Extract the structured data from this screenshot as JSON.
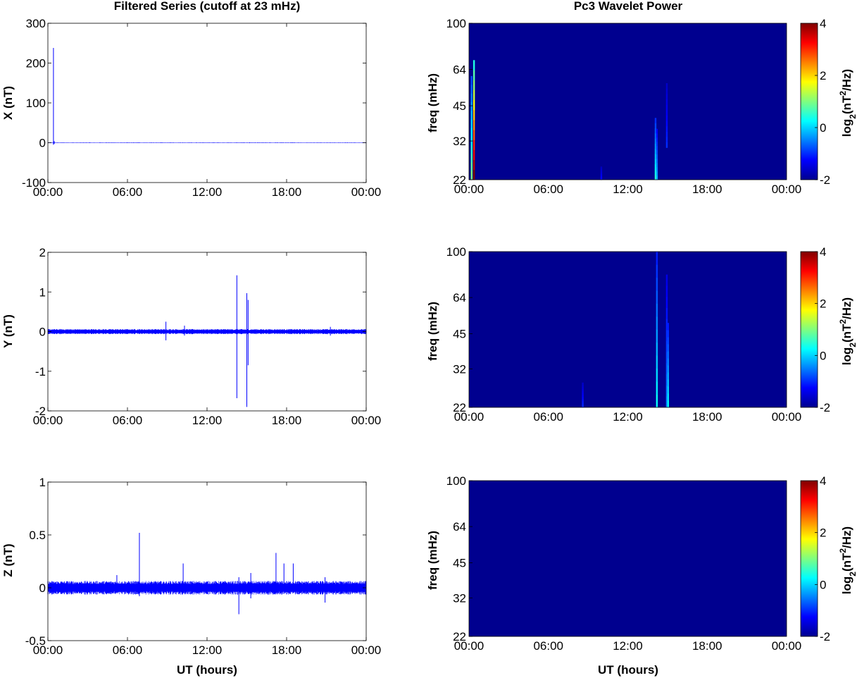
{
  "chart_data": [
    {
      "type": "line",
      "title": "Filtered Series (cutoff at 23 mHz)",
      "ylabel": "X (nT)",
      "xlabel": "",
      "x_ticks": [
        "00:00",
        "06:00",
        "12:00",
        "18:00",
        "00:00"
      ],
      "xlim_hours": [
        0,
        24
      ],
      "ylim": [
        -100,
        300
      ],
      "y_ticks": [
        -100,
        0,
        100,
        200,
        300
      ],
      "color": "#0000ff",
      "noise_amplitude": 0.5,
      "spikes": [
        {
          "t": 0.42,
          "min": -5,
          "max": 238
        },
        {
          "t": 0.48,
          "min": -3,
          "max": 4
        },
        {
          "t": 15.2,
          "min": -1,
          "max": 1
        }
      ]
    },
    {
      "type": "line",
      "title": "",
      "ylabel": "Y (nT)",
      "xlabel": "",
      "x_ticks": [
        "00:00",
        "06:00",
        "12:00",
        "18:00",
        "00:00"
      ],
      "xlim_hours": [
        0,
        24
      ],
      "ylim": [
        -2,
        2
      ],
      "y_ticks": [
        -2,
        -1,
        0,
        1,
        2
      ],
      "color": "#0000ff",
      "noise_amplitude": 0.05,
      "spikes": [
        {
          "t": 8.9,
          "min": -0.22,
          "max": 0.25
        },
        {
          "t": 10.3,
          "min": -0.1,
          "max": 0.15
        },
        {
          "t": 14.25,
          "min": -1.68,
          "max": 1.42
        },
        {
          "t": 15.0,
          "min": -1.9,
          "max": 0.97
        },
        {
          "t": 15.1,
          "min": -0.85,
          "max": 0.8
        },
        {
          "t": 21.3,
          "min": -0.1,
          "max": 0.12
        }
      ]
    },
    {
      "type": "line",
      "title": "",
      "ylabel": "Z (nT)",
      "xlabel": "UT (hours)",
      "x_ticks": [
        "00:00",
        "06:00",
        "12:00",
        "18:00",
        "00:00"
      ],
      "xlim_hours": [
        0,
        24
      ],
      "ylim": [
        -0.5,
        1
      ],
      "y_ticks": [
        -0.5,
        0,
        0.5,
        1
      ],
      "color": "#0000ff",
      "noise_amplitude": 0.05,
      "spikes": [
        {
          "t": 5.2,
          "min": -0.05,
          "max": 0.12
        },
        {
          "t": 6.9,
          "min": -0.08,
          "max": 0.52
        },
        {
          "t": 10.2,
          "min": -0.05,
          "max": 0.23
        },
        {
          "t": 14.4,
          "min": -0.25,
          "max": 0.1
        },
        {
          "t": 15.3,
          "min": -0.1,
          "max": 0.14
        },
        {
          "t": 17.2,
          "min": -0.05,
          "max": 0.33
        },
        {
          "t": 17.8,
          "min": -0.05,
          "max": 0.23
        },
        {
          "t": 18.5,
          "min": -0.05,
          "max": 0.23
        },
        {
          "t": 20.9,
          "min": -0.14,
          "max": 0.1
        }
      ]
    },
    {
      "type": "heatmap",
      "title": "Pc3 Wavelet Power",
      "ylabel": "freq (mHz)",
      "xlabel": "",
      "x_ticks": [
        "00:00",
        "06:00",
        "12:00",
        "18:00",
        "00:00"
      ],
      "xlim_hours": [
        0,
        24
      ],
      "y_ticks": [
        22,
        32,
        45,
        64,
        100
      ],
      "y_scale": "log",
      "ylim": [
        22,
        100
      ],
      "colorbar": {
        "label": "log2(nT2/Hz)",
        "ticks": [
          -2,
          0,
          2,
          4
        ],
        "range": [
          -2,
          4
        ]
      },
      "background_value": -2,
      "streaks": [
        {
          "t": 0.2,
          "fmin": 22,
          "fmax": 60,
          "peak": 1.0
        },
        {
          "t": 0.38,
          "fmin": 22,
          "fmax": 70,
          "peak": 4.0
        },
        {
          "t": 10.0,
          "fmin": 22,
          "fmax": 25,
          "peak": -1.2
        },
        {
          "t": 14.1,
          "fmin": 22,
          "fmax": 40,
          "peak": 0.5
        },
        {
          "t": 14.2,
          "fmin": 22,
          "fmax": 36,
          "peak": -0.2
        },
        {
          "t": 14.95,
          "fmin": 30,
          "fmax": 56,
          "peak": -1.0
        }
      ]
    },
    {
      "type": "heatmap",
      "title": "",
      "ylabel": "freq (mHz)",
      "xlabel": "",
      "x_ticks": [
        "00:00",
        "06:00",
        "12:00",
        "18:00",
        "00:00"
      ],
      "xlim_hours": [
        0,
        24
      ],
      "y_ticks": [
        22,
        32,
        45,
        64,
        100
      ],
      "y_scale": "log",
      "ylim": [
        22,
        100
      ],
      "colorbar": {
        "label": "log2(nT2/Hz)",
        "ticks": [
          -2,
          0,
          2,
          4
        ],
        "range": [
          -2,
          4
        ]
      },
      "background_value": -2,
      "streaks": [
        {
          "t": 8.6,
          "fmin": 22,
          "fmax": 28,
          "peak": -1.0
        },
        {
          "t": 14.2,
          "fmin": 22,
          "fmax": 100,
          "peak": 0.3
        },
        {
          "t": 14.95,
          "fmin": 22,
          "fmax": 80,
          "peak": -0.5
        },
        {
          "t": 15.05,
          "fmin": 22,
          "fmax": 50,
          "peak": 0.2
        }
      ]
    },
    {
      "type": "heatmap",
      "title": "",
      "ylabel": "freq (mHz)",
      "xlabel": "UT (hours)",
      "x_ticks": [
        "00:00",
        "06:00",
        "12:00",
        "18:00",
        "00:00"
      ],
      "xlim_hours": [
        0,
        24
      ],
      "y_ticks": [
        22,
        32,
        45,
        64,
        100
      ],
      "y_scale": "log",
      "ylim": [
        22,
        100
      ],
      "colorbar": {
        "label": "log2(nT2/Hz)",
        "ticks": [
          -2,
          0,
          2,
          4
        ],
        "range": [
          -2,
          4
        ]
      },
      "background_value": -2,
      "streaks": []
    }
  ]
}
